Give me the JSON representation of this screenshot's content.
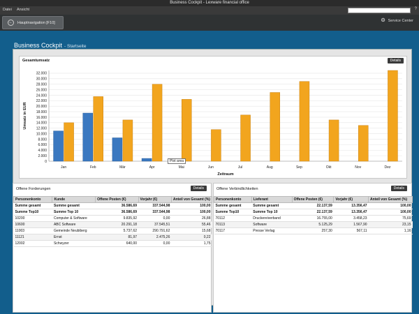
{
  "window": {
    "title": "Business Cockpit - Lexware financial office"
  },
  "menu": {
    "items": [
      "Datei",
      "Ansicht"
    ],
    "help": "?"
  },
  "nav": {
    "tab_label": "Hauptnavigation [F10]",
    "service_center": "Service Center"
  },
  "page": {
    "title": "Business Cockpit",
    "subtitle": "- Startseite"
  },
  "chart_card": {
    "title": "Gesamtumsatz",
    "details": "Details",
    "tooltip": "Plot area"
  },
  "chart_data": {
    "type": "bar",
    "categories": [
      "Jan",
      "Feb",
      "Mär",
      "Apr",
      "Mai",
      "Jun",
      "Jul",
      "Aug",
      "Sep",
      "Okt",
      "Nov",
      "Dez"
    ],
    "series": [
      {
        "values": [
          11000,
          17500,
          8500,
          1000,
          0,
          0,
          0,
          0,
          0,
          0,
          0,
          0
        ]
      },
      {
        "values": [
          14000,
          23500,
          15000,
          28000,
          22500,
          11500,
          16800,
          25000,
          29000,
          15000,
          13000,
          33000
        ]
      }
    ],
    "colors": [
      "#3a78c0",
      "#f2a51e"
    ],
    "xlabel": "Zeitraum",
    "ylabel": "Umsatz in EUR",
    "ylim": [
      0,
      33000
    ],
    "yticks": [
      "0",
      "2.000",
      "4.000",
      "6.000",
      "8.000",
      "10.000",
      "12.000",
      "14.000",
      "16.000",
      "18.000",
      "20.000",
      "22.000",
      "24.000",
      "26.000",
      "28.000",
      "30.000",
      "32.000"
    ],
    "grid": true
  },
  "receivables": {
    "title": "Offene Forderungen",
    "details": "Details",
    "columns": [
      "Personenkonto",
      "Kunde",
      "Offene Posten (€)",
      "Vorjahr (€)",
      "Anteil von Gesamt (%)"
    ],
    "rows": [
      [
        "Summe gesamt",
        "Summe gesamt",
        "36.586,69",
        "337.544,98",
        "100,00"
      ],
      [
        "Summe Top10",
        "Summe Top 10",
        "36.586,69",
        "337.544,98",
        "100,00"
      ],
      [
        "10200",
        "Computer & Software",
        "9.835,92",
        "0,00",
        "26,88"
      ],
      [
        "10600",
        "ABC Software",
        "20.291,18",
        "37.545,51",
        "55,46"
      ],
      [
        "11003",
        "Gemeinde Neubiberg",
        "5.737,62",
        "290.791,62",
        "15,68"
      ],
      [
        "11121",
        "Ernst",
        "81,97",
        "2.475,26",
        "0,22"
      ],
      [
        "12002",
        "Schwyzer",
        "640,00",
        "0,00",
        "1,75"
      ]
    ]
  },
  "payables": {
    "title": "Offene Verbindlichkeiten",
    "details": "Details",
    "columns": [
      "Personenkonto",
      "Lieferant",
      "Offene Posten (€)",
      "Vorjahr (€)",
      "Anteil von Gesamt (%)"
    ],
    "rows": [
      [
        "Summe gesamt",
        "Summe gesamt",
        "22.137,59",
        "13.356,47",
        "100,00"
      ],
      [
        "Summe Top10",
        "Summe Top 10",
        "22.137,59",
        "13.356,47",
        "100,00"
      ],
      [
        "70112",
        "Druckereiverband",
        "16.755,00",
        "3.458,23",
        "75,69"
      ],
      [
        "70113",
        "Software",
        "5.125,29",
        "1.567,90",
        "23,15"
      ],
      [
        "70117",
        "Presse Verlag",
        "257,30",
        "567,11",
        "1,16"
      ]
    ]
  }
}
